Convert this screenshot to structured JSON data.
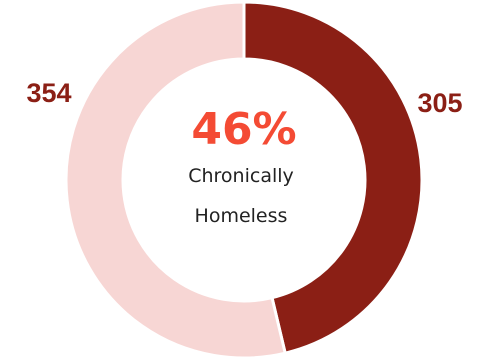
{
  "chart_data": {
    "type": "pie",
    "variant": "donut",
    "slices": [
      {
        "label": "305",
        "value": 305,
        "color": "#8b1f15"
      },
      {
        "label": "354",
        "value": 354,
        "color": "#f7d6d4"
      }
    ],
    "center": {
      "percent": "46%",
      "line1": "Chronically",
      "line2": "Homeless"
    },
    "colors": {
      "accent_text": "#f44b34",
      "label_text": "#8b1f15"
    }
  }
}
